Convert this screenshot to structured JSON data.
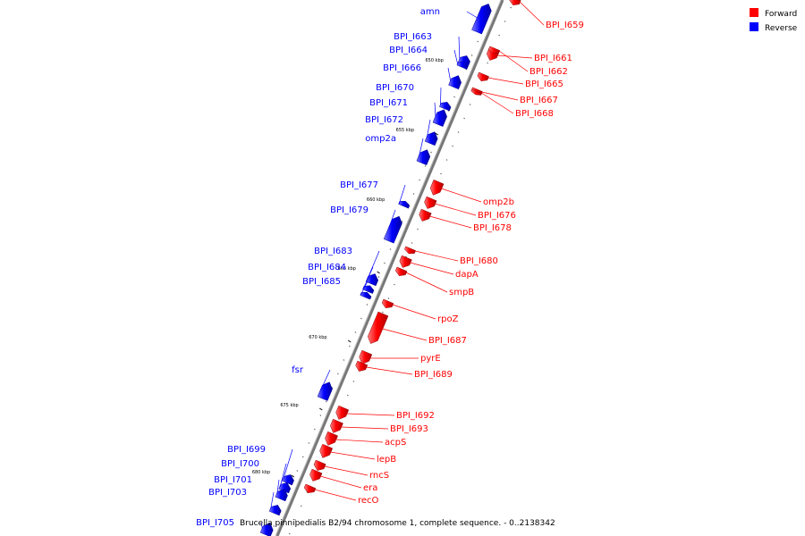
{
  "caption": "Brucella pinnipedialis B2/94 chromosome 1, complete sequence. - 0..2138342",
  "legend": [
    {
      "label": "Forward",
      "color": "#ff0000"
    },
    {
      "label": "Reverse",
      "color": "#0000ff"
    }
  ],
  "colors": {
    "forward": "#ff0000",
    "reverse": "#0000ff",
    "axis": "#888888"
  },
  "ticks": [
    "650 kbp",
    "655 kbp",
    "660 kbp",
    "665 kbp",
    "670 kbp",
    "675 kbp",
    "680 kbp"
  ],
  "reverse_genes": [
    "amn",
    "BPI_I663",
    "BPI_I664",
    "BPI_I666",
    "BPI_I670",
    "BPI_I671",
    "BPI_I672",
    "omp2a",
    "BPI_I677",
    "BPI_I679",
    "BPI_I683",
    "BPI_I684",
    "BPI_I685",
    "fsr",
    "BPI_I699",
    "BPI_I700",
    "BPI_I701",
    "BPI_I703",
    "BPI_I705"
  ],
  "forward_genes": [
    "BPI_I659",
    "BPI_I661",
    "BPI_I662",
    "BPI_I665",
    "BPI_I667",
    "BPI_I668",
    "omp2b",
    "BPI_I676",
    "BPI_I678",
    "BPI_I680",
    "dapA",
    "smpB",
    "rpoZ",
    "BPI_I687",
    "pyrE",
    "BPI_I689",
    "BPI_I692",
    "BPI_I693",
    "acpS",
    "lepB",
    "rncS",
    "era",
    "recO"
  ]
}
